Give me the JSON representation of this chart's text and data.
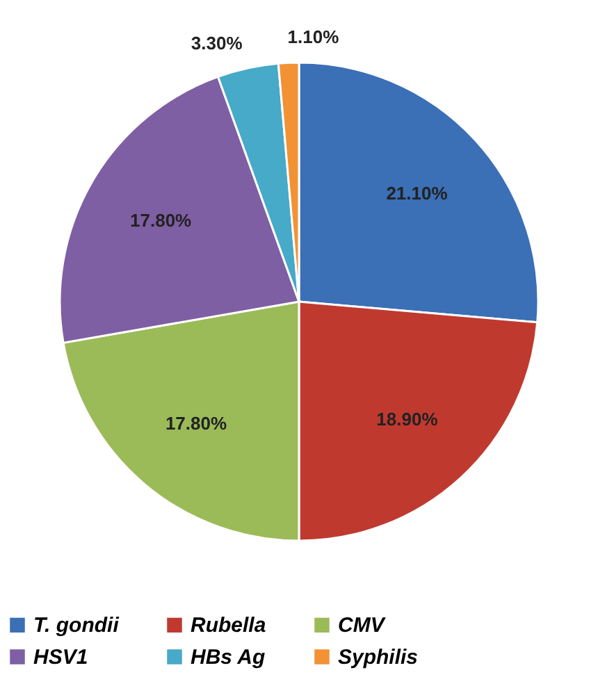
{
  "chart_data": {
    "type": "pie",
    "categories": [
      "T. gondii",
      "Rubella",
      "CMV",
      "HSV1",
      "HBs Ag",
      "Syphilis"
    ],
    "values": [
      21.1,
      18.9,
      17.8,
      17.8,
      3.3,
      1.1
    ],
    "colors": [
      "#3b6fb6",
      "#c0392f",
      "#9bbb59",
      "#7f5fa3",
      "#46aac8",
      "#f29234"
    ],
    "value_labels": [
      "21.10%",
      "18.90%",
      "17.80%",
      "17.80%",
      "3.30%",
      "1.10%"
    ],
    "legend": "bottom"
  }
}
